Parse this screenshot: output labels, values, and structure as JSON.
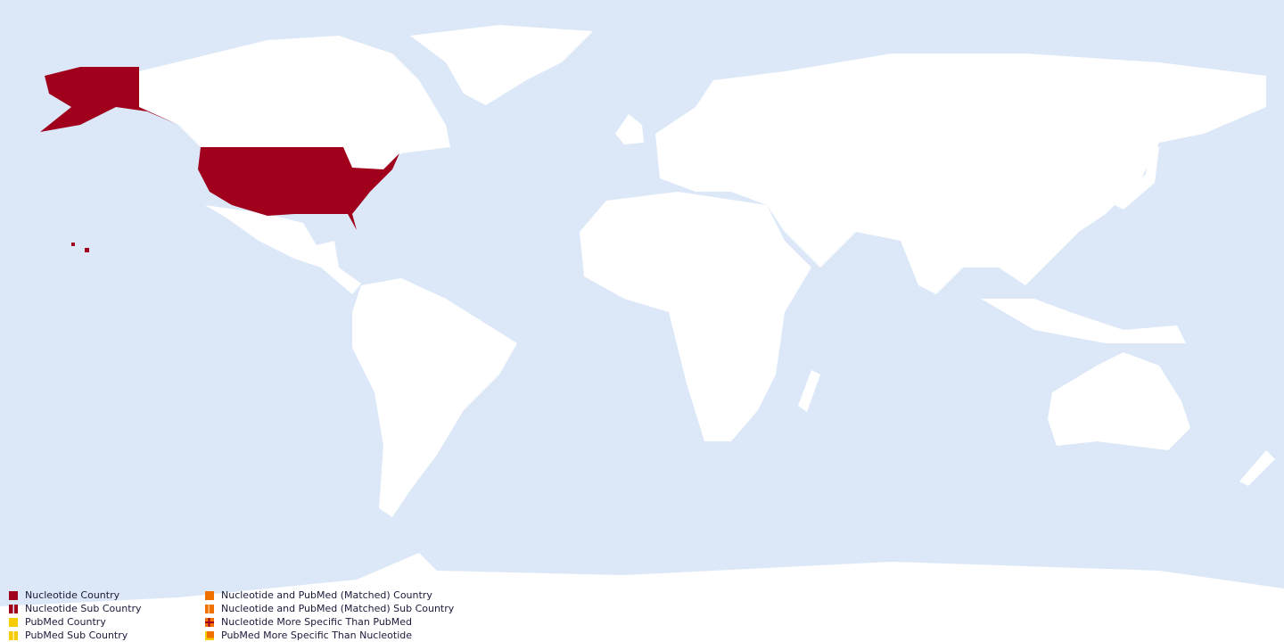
{
  "colors": {
    "ocean": "#dce8f8",
    "land": "#ffffff",
    "nucleotide": "#a0001c",
    "pubmed": "#f5cc00",
    "matched": "#f07000"
  },
  "highlighted_regions": [
    "United States",
    "Alaska",
    "Hawaii"
  ],
  "legend": {
    "items": [
      {
        "label": "Nucleotide Country",
        "color": "#a0001c",
        "pattern": "solid"
      },
      {
        "label": "Nucleotide Sub Country",
        "color": "#a0001c",
        "pattern": "split"
      },
      {
        "label": "PubMed Country",
        "color": "#f5cc00",
        "pattern": "solid"
      },
      {
        "label": "PubMed  Sub Country",
        "color": "#f5cc00",
        "pattern": "split"
      },
      {
        "label": "Nucleotide and PubMed (Matched) Country",
        "color": "#f07000",
        "pattern": "solid"
      },
      {
        "label": "Nucleotide and PubMed (Matched) Sub Country",
        "color": "#f07000",
        "pattern": "split"
      },
      {
        "label": "Nucleotide More Specific Than PubMed",
        "color": "#f07000",
        "pattern": "cross"
      },
      {
        "label": "PubMed More Specific Than Nucleotide",
        "color": "#f07000",
        "pattern": "corner"
      }
    ]
  }
}
